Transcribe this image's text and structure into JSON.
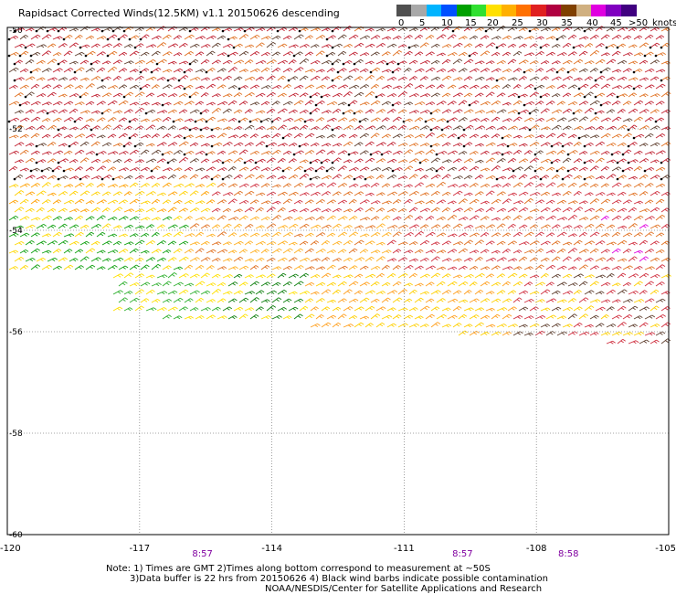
{
  "title": "Rapidsact Corrected Winds(12.5KM) v1.1 20150626 descending",
  "legend": {
    "colors": [
      "#505050",
      "#a8a8a8",
      "#00b4ff",
      "#0050ff",
      "#00a000",
      "#30e030",
      "#ffe000",
      "#ffb000",
      "#ff7000",
      "#e02020",
      "#b00040",
      "#804000",
      "#d0b080",
      "#e000e0",
      "#8000c0",
      "#400080"
    ],
    "labels": [
      "0",
      "5",
      "10",
      "15",
      "20",
      "25",
      "30",
      "35",
      "40",
      "45",
      ">50"
    ],
    "unit": "knots"
  },
  "map": {
    "lon_range": [
      -120,
      -105
    ],
    "lat_range": [
      -50,
      -60
    ],
    "lon_ticks": [
      "-120",
      "-117",
      "-114",
      "-111",
      "-108",
      "-105"
    ],
    "lat_ticks": [
      "-50",
      "-52",
      "-54",
      "-56",
      "-58",
      "-60"
    ]
  },
  "time_labels": [
    {
      "text": "8:57",
      "lon": -115.6
    },
    {
      "text": "8:57",
      "lon": -109.7
    },
    {
      "text": "8:58",
      "lon": -107.3
    }
  ],
  "notes": [
    "Note: 1) Times are GMT 2)Times along bottom correspond to measurement at ~50S",
    "3)Data buffer is 22 hrs from 20150626 4) Black wind barbs indicate possible contamination",
    "NOAA/NESDIS/Center for Satellite Applications and Research"
  ]
}
